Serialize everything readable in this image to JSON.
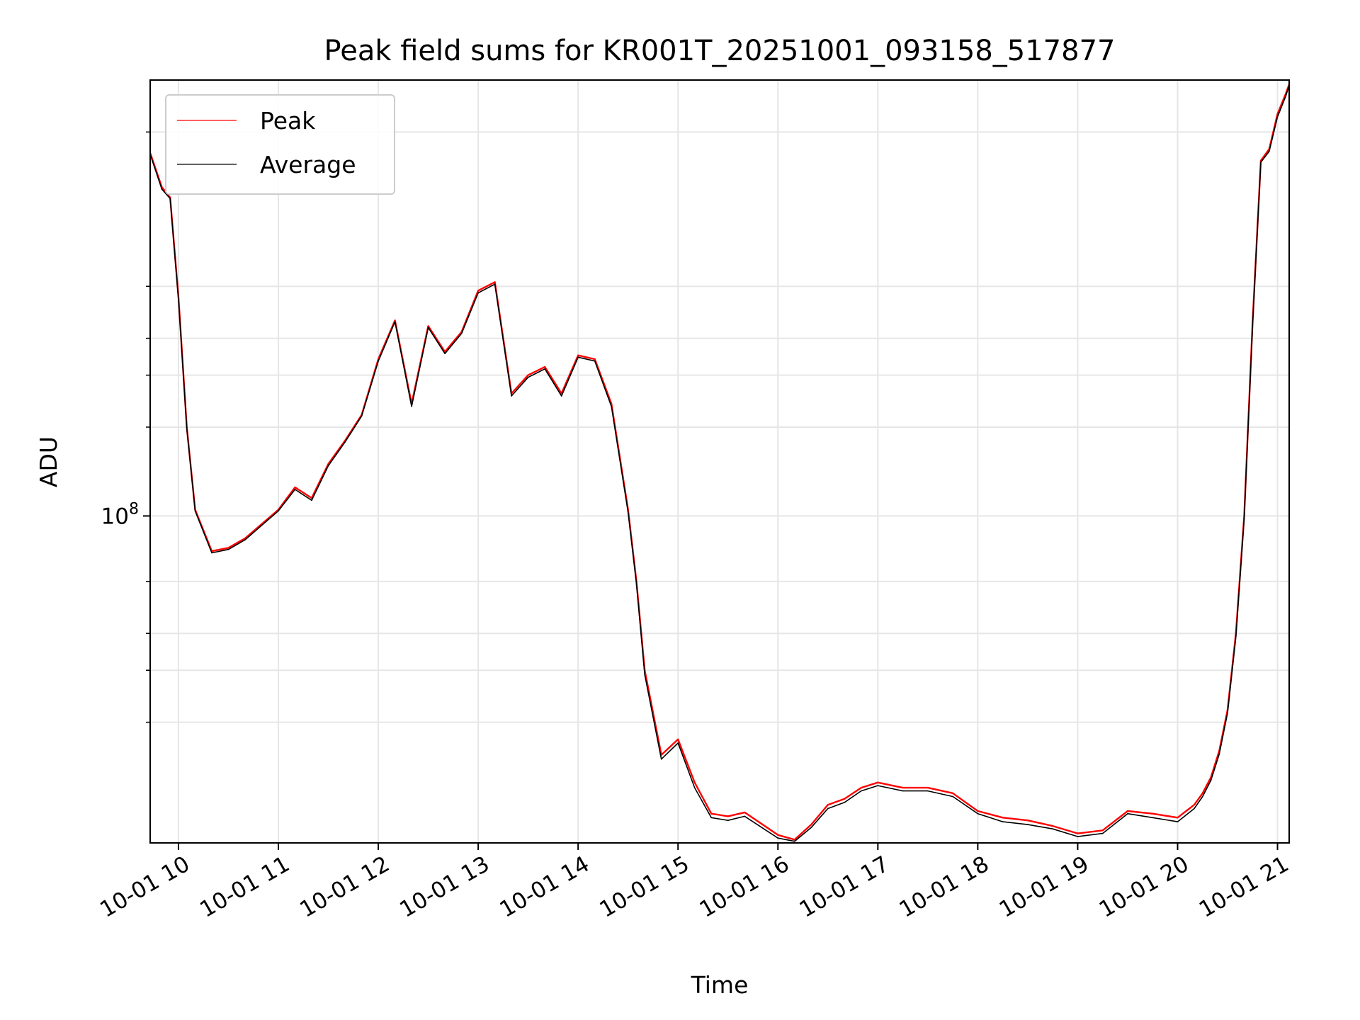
{
  "chart_data": {
    "type": "line",
    "title": "Peak field sums for KR001T_20251001_093158_517877",
    "xlabel": "Time",
    "ylabel": "ADU",
    "y_scale": "log",
    "xlim": [
      "2025-10-01T09:43",
      "2025-10-01T21:07"
    ],
    "ylim": [
      7800000.0,
      3000000000.0
    ],
    "grid": true,
    "legend_position": "upper-left",
    "x_ticks": [
      "10-01 10",
      "10-01 11",
      "10-01 12",
      "10-01 13",
      "10-01 14",
      "10-01 15",
      "10-01 16",
      "10-01 17",
      "10-01 18",
      "10-01 19",
      "10-01 20",
      "10-01 21"
    ],
    "y_ticks": [
      "10^8"
    ],
    "x": [
      "09:43",
      "09:50",
      "09:55",
      "10:00",
      "10:05",
      "10:10",
      "10:20",
      "10:30",
      "10:40",
      "11:00",
      "11:10",
      "11:20",
      "11:30",
      "11:40",
      "11:50",
      "12:00",
      "12:10",
      "12:20",
      "12:30",
      "12:40",
      "12:50",
      "13:00",
      "13:10",
      "13:20",
      "13:30",
      "13:40",
      "13:50",
      "14:00",
      "14:10",
      "14:20",
      "14:30",
      "14:35",
      "14:40",
      "14:50",
      "15:00",
      "15:10",
      "15:20",
      "15:30",
      "15:40",
      "16:00",
      "16:10",
      "16:20",
      "16:30",
      "16:40",
      "16:50",
      "17:00",
      "17:15",
      "17:30",
      "17:45",
      "18:00",
      "18:15",
      "18:30",
      "18:45",
      "19:00",
      "19:15",
      "19:30",
      "19:45",
      "20:00",
      "20:10",
      "20:15",
      "20:20",
      "20:25",
      "20:30",
      "20:35",
      "20:40",
      "20:45",
      "20:50",
      "20:55",
      "21:00",
      "21:05",
      "21:07"
    ],
    "series": [
      {
        "name": "Peak",
        "color": "#ff0000",
        "values": [
          1700000000.0,
          1300000000.0,
          1200000000.0,
          550000000.0,
          200000000.0,
          105000000.0,
          76000000.0,
          78000000.0,
          84000000.0,
          105000000.0,
          125000000.0,
          115000000.0,
          150000000.0,
          180000000.0,
          220000000.0,
          340000000.0,
          460000000.0,
          240000000.0,
          440000000.0,
          360000000.0,
          420000000.0,
          580000000.0,
          620000000.0,
          260000000.0,
          300000000.0,
          320000000.0,
          260000000.0,
          350000000.0,
          340000000.0,
          240000000.0,
          105000000.0,
          60000000.0,
          30000000.0,
          15500000.0,
          17500000.0,
          12500000.0,
          9800000.0,
          9600000.0,
          9900000.0,
          8300000.0,
          8000000.0,
          9000000.0,
          10500000.0,
          11000000.0,
          12000000.0,
          12500000.0,
          12000000.0,
          12000000.0,
          11500000.0,
          10000000.0,
          9500000.0,
          9300000.0,
          8900000.0,
          8400000.0,
          8600000.0,
          10000000.0,
          9800000.0,
          9500000.0,
          10500000.0,
          11500000.0,
          13000000.0,
          16000000.0,
          22000000.0,
          40000000.0,
          100000000.0,
          450000000.0,
          1600000000.0,
          1750000000.0,
          2300000000.0,
          2700000000.0,
          2900000000.0
        ]
      },
      {
        "name": "Average",
        "color": "#000000",
        "values": [
          1680000000.0,
          1280000000.0,
          1190000000.0,
          540000000.0,
          198000000.0,
          104000000.0,
          75000000.0,
          77000000.0,
          83000000.0,
          104000000.0,
          123000000.0,
          113000000.0,
          148000000.0,
          178000000.0,
          218000000.0,
          335000000.0,
          455000000.0,
          235000000.0,
          435000000.0,
          355000000.0,
          415000000.0,
          570000000.0,
          610000000.0,
          255000000.0,
          295000000.0,
          315000000.0,
          255000000.0,
          345000000.0,
          335000000.0,
          235000000.0,
          103000000.0,
          59000000.0,
          29000000.0,
          15000000.0,
          17000000.0,
          12000000.0,
          9500000.0,
          9300000.0,
          9600000.0,
          8100000.0,
          7900000.0,
          8800000.0,
          10200000.0,
          10700000.0,
          11700000.0,
          12200000.0,
          11700000.0,
          11700000.0,
          11200000.0,
          9800000.0,
          9200000.0,
          9000000.0,
          8700000.0,
          8200000.0,
          8400000.0,
          9800000.0,
          9500000.0,
          9200000.0,
          10200000.0,
          11200000.0,
          12700000.0,
          15600000.0,
          21500000.0,
          39000000.0,
          98000000.0,
          440000000.0,
          1580000000.0,
          1720000000.0,
          2250000000.0,
          2650000000.0,
          2880000000.0
        ]
      }
    ]
  }
}
